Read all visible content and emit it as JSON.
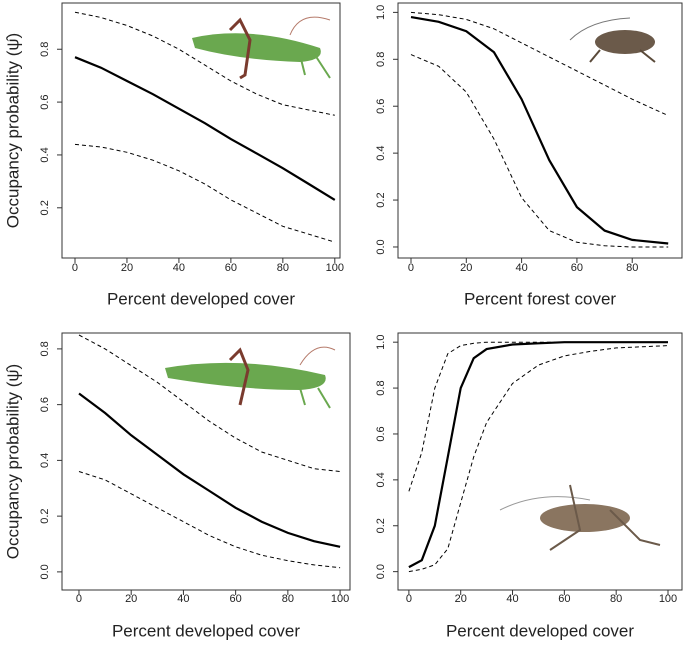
{
  "chart_data": [
    {
      "type": "line",
      "xlabel": "Percent developed cover",
      "ylabel": "Occupancy probability (ψ̂)",
      "x": [
        0,
        10,
        20,
        30,
        40,
        50,
        60,
        70,
        80,
        90,
        100
      ],
      "series": [
        {
          "color": "#000000",
          "dashed": false,
          "values": [
            0.77,
            0.73,
            0.68,
            0.63,
            0.575,
            0.52,
            0.46,
            0.405,
            0.35,
            0.29,
            0.23
          ]
        },
        {
          "color": "#000000",
          "dashed": true,
          "values": [
            0.94,
            0.92,
            0.89,
            0.85,
            0.8,
            0.74,
            0.68,
            0.63,
            0.59,
            0.57,
            0.55
          ]
        },
        {
          "color": "#000000",
          "dashed": true,
          "values": [
            0.44,
            0.43,
            0.41,
            0.38,
            0.34,
            0.29,
            0.23,
            0.18,
            0.13,
            0.1,
            0.07
          ]
        }
      ],
      "xlim": [
        -5,
        102
      ],
      "ylim": [
        0.01,
        0.975
      ],
      "xticks": [
        0,
        20,
        40,
        60,
        80,
        100
      ],
      "yticks": [
        0.2,
        0.4,
        0.6,
        0.8
      ]
    },
    {
      "type": "line",
      "xlabel": "Percent forest cover",
      "x": [
        0,
        10,
        20,
        30,
        40,
        50,
        60,
        70,
        80,
        93
      ],
      "series": [
        {
          "color": "#000000",
          "dashed": false,
          "values": [
            0.98,
            0.96,
            0.92,
            0.83,
            0.63,
            0.37,
            0.17,
            0.07,
            0.03,
            0.015
          ]
        },
        {
          "color": "#000000",
          "dashed": true,
          "values": [
            1.0,
            0.99,
            0.97,
            0.93,
            0.87,
            0.81,
            0.75,
            0.69,
            0.63,
            0.56
          ]
        },
        {
          "color": "#000000",
          "dashed": true,
          "values": [
            0.82,
            0.77,
            0.66,
            0.46,
            0.21,
            0.07,
            0.02,
            0.005,
            0.0,
            0.0
          ]
        }
      ],
      "xlim": [
        -4.7,
        98
      ],
      "ylim": [
        -0.047,
        1.04
      ],
      "xticks": [
        0,
        20,
        40,
        60,
        80
      ],
      "yticks": [
        {
          "value": 0,
          "label": "0.0"
        },
        0.2,
        0.4,
        0.6,
        0.8,
        {
          "value": 1,
          "label": "1.0"
        }
      ]
    },
    {
      "type": "line",
      "xlabel": "Percent developed cover",
      "ylabel": "Occupancy probability (ψ̂)",
      "x": [
        0,
        10,
        20,
        30,
        40,
        50,
        60,
        70,
        80,
        90,
        100
      ],
      "series": [
        {
          "color": "#000000",
          "dashed": false,
          "values": [
            0.64,
            0.57,
            0.49,
            0.42,
            0.35,
            0.29,
            0.23,
            0.18,
            0.14,
            0.11,
            0.09
          ]
        },
        {
          "color": "#000000",
          "dashed": true,
          "values": [
            0.85,
            0.8,
            0.74,
            0.68,
            0.61,
            0.54,
            0.48,
            0.43,
            0.4,
            0.37,
            0.36
          ]
        },
        {
          "color": "#000000",
          "dashed": true,
          "values": [
            0.36,
            0.33,
            0.28,
            0.23,
            0.18,
            0.13,
            0.09,
            0.06,
            0.04,
            0.025,
            0.015
          ]
        }
      ],
      "xlim": [
        -6.5,
        103.8
      ],
      "ylim": [
        -0.065,
        0.857
      ],
      "xticks": [
        0,
        20,
        40,
        60,
        80,
        100
      ],
      "yticks": [
        {
          "value": 0,
          "label": "0.0"
        },
        0.2,
        0.4,
        0.6,
        0.8
      ]
    },
    {
      "type": "line",
      "xlabel": "Percent developed cover",
      "x": [
        0,
        5,
        10,
        15,
        20,
        25,
        30,
        40,
        50,
        60,
        70,
        80,
        90,
        100
      ],
      "series": [
        {
          "color": "#000000",
          "dashed": false,
          "values": [
            0.02,
            0.05,
            0.2,
            0.5,
            0.8,
            0.93,
            0.97,
            0.99,
            0.995,
            1,
            1,
            1,
            1,
            1
          ]
        },
        {
          "color": "#000000",
          "dashed": true,
          "values": [
            0.35,
            0.52,
            0.8,
            0.95,
            0.985,
            0.995,
            1,
            1,
            1,
            1,
            1,
            1,
            1,
            1
          ]
        },
        {
          "color": "#000000",
          "dashed": true,
          "values": [
            0.0,
            0.01,
            0.03,
            0.1,
            0.3,
            0.5,
            0.65,
            0.82,
            0.9,
            0.94,
            0.96,
            0.975,
            0.98,
            0.985
          ]
        }
      ],
      "xlim": [
        -4.2,
        105.4
      ],
      "ylim": [
        -0.08,
        1.04
      ],
      "xticks": [
        0,
        20,
        40,
        60,
        80,
        100
      ],
      "yticks": [
        {
          "value": 0,
          "label": "0.0"
        },
        0.2,
        0.4,
        0.6,
        0.8,
        {
          "value": 1,
          "label": "1.0"
        }
      ]
    }
  ]
}
